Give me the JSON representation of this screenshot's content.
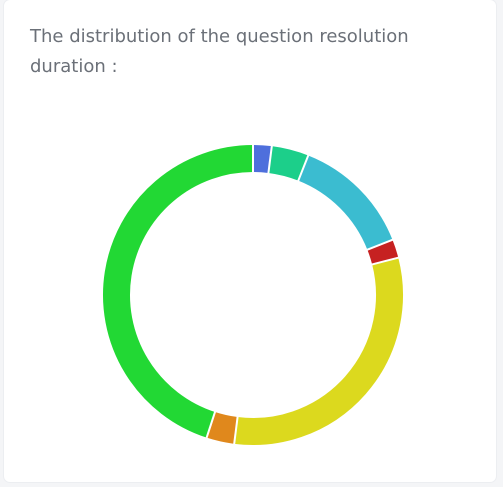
{
  "chart_data": {
    "type": "doughnut",
    "title": "The distribution of the question resolution duration :",
    "values": [
      2,
      4,
      13,
      2,
      31,
      3,
      45
    ],
    "colors": [
      "#4e6fdc",
      "#1ccf8a",
      "#3bbcd0",
      "#c62121",
      "#dcd91e",
      "#e0881c",
      "#22d834"
    ]
  }
}
